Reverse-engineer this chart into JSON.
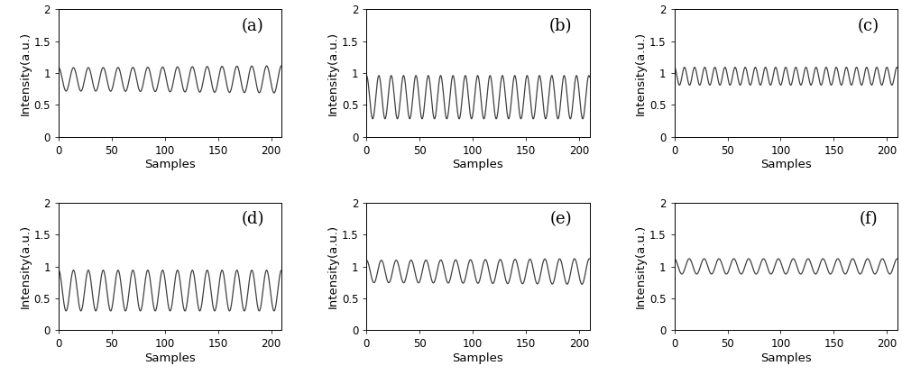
{
  "panels": [
    {
      "label": "(a)",
      "freq": 0.0715,
      "amplitude": 0.2,
      "mean": 0.9,
      "env_amp": 0.08,
      "env_freq": 0.002,
      "env_phase": 1.5
    },
    {
      "label": "(b)",
      "freq": 0.086,
      "amplitude": 0.34,
      "mean": 0.62,
      "env_amp": 0.0,
      "env_freq": 0.0,
      "env_phase": 0.0
    },
    {
      "label": "(c)",
      "freq": 0.105,
      "amplitude": 0.14,
      "mean": 0.95,
      "env_amp": 0.0,
      "env_freq": 0.0,
      "env_phase": 0.0
    },
    {
      "label": "(d)",
      "freq": 0.0715,
      "amplitude": 0.32,
      "mean": 0.62,
      "env_amp": 0.0,
      "env_freq": 0.0,
      "env_phase": 0.0
    },
    {
      "label": "(e)",
      "freq": 0.0715,
      "amplitude": 0.19,
      "mean": 0.92,
      "env_amp": 0.07,
      "env_freq": 0.002,
      "env_phase": 1.5
    },
    {
      "label": "(f)",
      "freq": 0.0715,
      "amplitude": 0.12,
      "mean": 1.0,
      "env_amp": 0.0,
      "env_freq": 0.0,
      "env_phase": 0.0
    }
  ],
  "ylim": [
    0,
    2
  ],
  "xlim": [
    0,
    210
  ],
  "yticks": [
    0,
    0.5,
    1,
    1.5,
    2
  ],
  "ytick_labels": [
    "0",
    "0.5",
    "1",
    "1.5",
    "2"
  ],
  "xticks": [
    0,
    50,
    100,
    150,
    200
  ],
  "xlabel": "Samples",
  "ylabel": "Intensity(a.u.)",
  "line_color": "#404040",
  "line_width": 0.9,
  "bg_color": "#ffffff",
  "label_fontsize": 13,
  "tick_fontsize": 8.5,
  "axis_label_fontsize": 9.5
}
